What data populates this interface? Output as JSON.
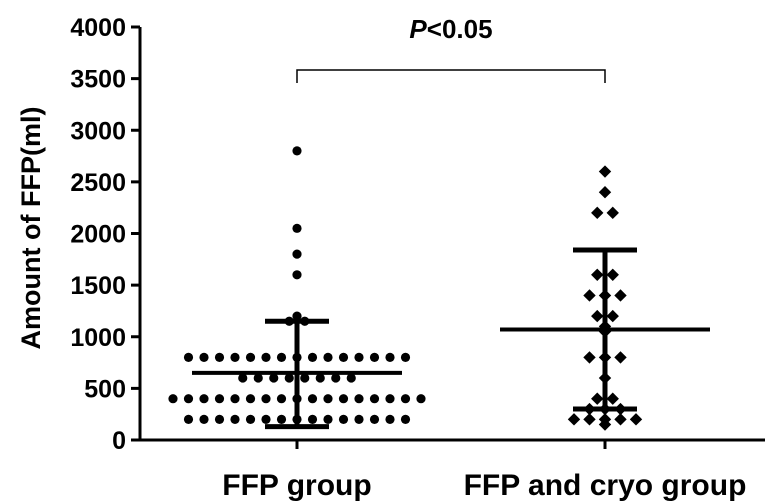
{
  "chart_data": {
    "type": "scatter",
    "title": "",
    "xlabel": "",
    "ylabel": "Amount of FFP(ml)",
    "ylim": [
      0,
      4000
    ],
    "yticks": [
      0,
      500,
      1000,
      1500,
      2000,
      2500,
      3000,
      3500,
      4000
    ],
    "categories": [
      "FFP group",
      "FFP and cryo group"
    ],
    "grid": false,
    "legend": "none",
    "significance": {
      "label_italic": "P",
      "label_rest": "<0.05"
    },
    "series": [
      {
        "marker": "circle",
        "mean": 650,
        "sd_upper": 1150,
        "sd_lower": 130,
        "values": [
          2800,
          2050,
          1800,
          1600,
          1200,
          1150,
          1150,
          800,
          800,
          800,
          800,
          800,
          800,
          800,
          800,
          800,
          800,
          800,
          800,
          800,
          800,
          800,
          600,
          600,
          600,
          600,
          600,
          600,
          600,
          600,
          400,
          400,
          400,
          400,
          400,
          400,
          400,
          400,
          400,
          400,
          400,
          400,
          400,
          400,
          400,
          400,
          400,
          200,
          200,
          200,
          200,
          200,
          200,
          200,
          200,
          200,
          200,
          200,
          200,
          200,
          200,
          200
        ]
      },
      {
        "marker": "diamond",
        "mean": 1070,
        "sd_upper": 1840,
        "sd_lower": 300,
        "values": [
          2600,
          2400,
          2200,
          2200,
          1600,
          1600,
          1400,
          1400,
          1400,
          1200,
          1200,
          1100,
          1050,
          800,
          800,
          800,
          600,
          400,
          400,
          300,
          300,
          300,
          200,
          200,
          200,
          200,
          200,
          150
        ]
      }
    ]
  }
}
